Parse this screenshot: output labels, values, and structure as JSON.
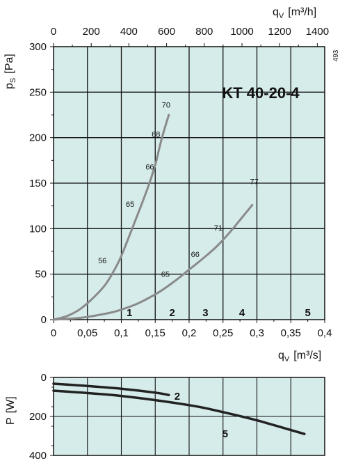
{
  "chart_data": [
    {
      "type": "line",
      "title": "KT  40-20-4",
      "figure_id": "493",
      "xlabel": "q",
      "xlabel_sub": "V",
      "xlabel_unit": "[m³/s]",
      "x2label": "q",
      "x2label_sub": "V",
      "x2label_unit": "[m³/h]",
      "ylabel": "p",
      "ylabel_sub": "S",
      "ylabel_unit": "[Pa]",
      "xlim": [
        0,
        0.4
      ],
      "ylim": [
        0,
        300
      ],
      "x_ticks": [
        "0",
        "0,05",
        "0,1",
        "0,15",
        "0,2",
        "0,25",
        "0,3",
        "0,35",
        "0,4"
      ],
      "x2_ticks": [
        "0",
        "200",
        "400",
        "600",
        "800",
        "1000",
        "1200",
        "1400"
      ],
      "y_ticks": [
        "0",
        "50",
        "100",
        "150",
        "200",
        "250",
        "300"
      ],
      "grid": true,
      "background": "#d6ecea",
      "curve_color": "#8a8a8a",
      "series": [
        {
          "x": [
            0.0,
            0.02,
            0.04,
            0.06,
            0.077,
            0.09,
            0.1,
            0.116,
            0.13,
            0.14,
            0.15,
            0.155,
            0.16,
            0.17
          ],
          "y": [
            0,
            4,
            12,
            25,
            39,
            55,
            70,
            100,
            127,
            147,
            170,
            185,
            200,
            225
          ]
        },
        {
          "x": [
            0.0,
            0.04,
            0.08,
            0.1,
            0.125,
            0.155,
            0.18,
            0.195,
            0.22,
            0.24,
            0.26,
            0.28,
            0.293
          ],
          "y": [
            0,
            2,
            7,
            11,
            18,
            30,
            43,
            52,
            67,
            80,
            96,
            114,
            126
          ]
        }
      ],
      "point_labels": [
        {
          "text": "56",
          "x": 0.072,
          "y": 62
        },
        {
          "text": "65",
          "x": 0.113,
          "y": 124
        },
        {
          "text": "66",
          "x": 0.142,
          "y": 165
        },
        {
          "text": "68",
          "x": 0.151,
          "y": 201
        },
        {
          "text": "70",
          "x": 0.166,
          "y": 233
        },
        {
          "text": "65",
          "x": 0.165,
          "y": 47
        },
        {
          "text": "66",
          "x": 0.209,
          "y": 69
        },
        {
          "text": "71",
          "x": 0.243,
          "y": 98
        },
        {
          "text": "77",
          "x": 0.296,
          "y": 149
        }
      ],
      "regions": [
        {
          "label": "1",
          "x": 0.112
        },
        {
          "label": "2",
          "x": 0.175
        },
        {
          "label": "3",
          "x": 0.224
        },
        {
          "label": "4",
          "x": 0.278
        },
        {
          "label": "5",
          "x": 0.375
        }
      ]
    },
    {
      "type": "line",
      "ylabel": "P",
      "ylabel_unit": "[W]",
      "ylim": [
        0,
        400
      ],
      "y_ticks": [
        "0",
        "200",
        "400"
      ],
      "xlim": [
        0,
        0.4
      ],
      "grid": true,
      "background": "#d6ecea",
      "curve_color": "#222222",
      "series": [
        {
          "name": "2",
          "x": [
            0.0,
            0.05,
            0.1,
            0.15,
            0.17
          ],
          "y": [
            32,
            44,
            58,
            78,
            90
          ]
        },
        {
          "name": "5",
          "x": [
            0.0,
            0.1,
            0.2,
            0.25,
            0.3,
            0.37
          ],
          "y": [
            68,
            95,
            142,
            178,
            220,
            290
          ]
        }
      ]
    }
  ]
}
